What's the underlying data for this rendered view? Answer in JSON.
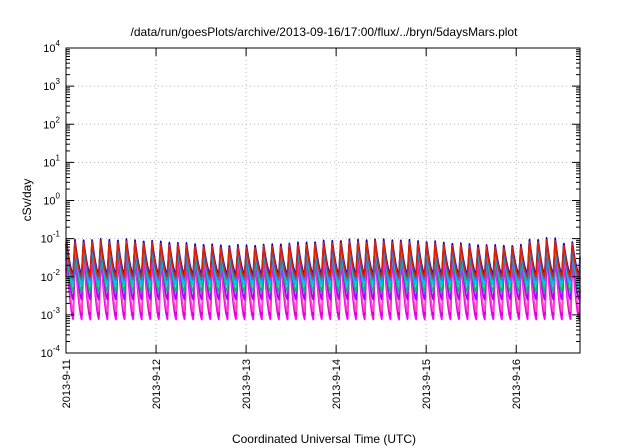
{
  "chart_data": {
    "type": "line",
    "title": "/data/run/goesPlots/archive/2013-09-16/17:00/flux/../bryn/5daysMars.plot",
    "xlabel": "Coordinated Universal Time (UTC)",
    "ylabel": "cSv/day",
    "yscale": "log",
    "ylim": [
      0.0001,
      10000
    ],
    "xlim": [
      "2013-09-11 00:00",
      "2013-09-16 17:00"
    ],
    "grid": true,
    "legend": "none",
    "y_ticks": [
      {
        "base": "10",
        "exp": "-4"
      },
      {
        "base": "10",
        "exp": "-3"
      },
      {
        "base": "10",
        "exp": "-2"
      },
      {
        "base": "10",
        "exp": "-1"
      },
      {
        "base": "10",
        "exp": "0"
      },
      {
        "base": "10",
        "exp": "1"
      },
      {
        "base": "10",
        "exp": "2"
      },
      {
        "base": "10",
        "exp": "3"
      },
      {
        "base": "10",
        "exp": "4"
      }
    ],
    "x_ticks": [
      "2013-9-11",
      "2013-9-12",
      "2013-9-13",
      "2013-9-14",
      "2013-9-15",
      "2013-9-16"
    ],
    "cycles_per_day": 10.5,
    "series": [
      {
        "color": "#ff00ff",
        "peak": 0.03,
        "trough": 0.00075
      },
      {
        "color": "#cc00cc",
        "peak": 0.04,
        "trough": 0.001
      },
      {
        "color": "#ff44cc",
        "peak": 0.045,
        "trough": 0.0012
      },
      {
        "color": "#aa00ff",
        "peak": 0.055,
        "trough": 0.0025
      },
      {
        "color": "#00bb77",
        "peak": 0.06,
        "trough": 0.004
      },
      {
        "color": "#00cccc",
        "peak": 0.065,
        "trough": 0.006
      },
      {
        "color": "#3377ff",
        "peak": 0.072,
        "trough": 0.008
      },
      {
        "color": "#0000cc",
        "peak": 0.085,
        "trough": 0.012
      },
      {
        "color": "#dd2200",
        "peak": 0.075,
        "trough": 0.01
      }
    ]
  }
}
